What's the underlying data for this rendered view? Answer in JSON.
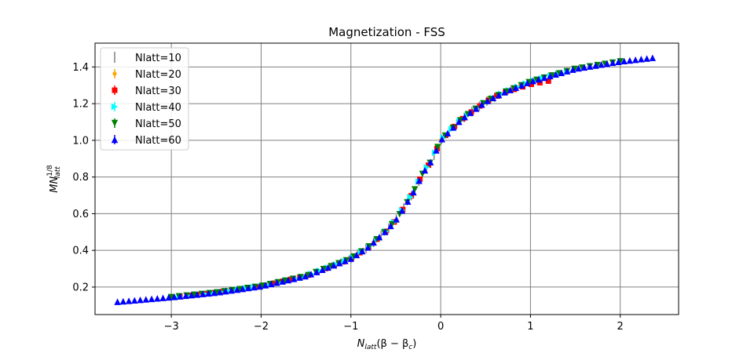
{
  "chart_data": {
    "type": "scatter",
    "title": "Magnetization - FSS",
    "xlabel": "N_latt(β − β_c)",
    "ylabel": "M N_latt^(1/8)",
    "xlim": [
      -3.85,
      2.65
    ],
    "ylim": [
      0.05,
      1.53
    ],
    "xticks": [
      -3,
      -2,
      -1,
      0,
      1,
      2
    ],
    "yticks": [
      0.2,
      0.4,
      0.6,
      0.8,
      1.0,
      1.2,
      1.4
    ],
    "xtick_labels": [
      "−3",
      "−2",
      "−1",
      "0",
      "1",
      "2"
    ],
    "ytick_labels": [
      "0.2",
      "0.4",
      "0.6",
      "0.8",
      "1.0",
      "1.2",
      "1.4"
    ],
    "grid": true,
    "legend_position": "top-left",
    "series": [
      {
        "name": "Nlatt=10",
        "color": "#808080",
        "marker": "errorbar",
        "x_range": [
          -1.0,
          0.6
        ],
        "n_points": 20
      },
      {
        "name": "Nlatt=20",
        "color": "#ffa500",
        "marker": "dot",
        "x_range": [
          -2.0,
          1.0
        ],
        "n_points": 25
      },
      {
        "name": "Nlatt=30",
        "color": "#ff0000",
        "marker": "square",
        "x_range": [
          -3.0,
          1.2
        ],
        "n_points": 45
      },
      {
        "name": "Nlatt=40",
        "color": "#00ffff",
        "marker": "triangle-right",
        "x_range": [
          -3.0,
          1.5
        ],
        "n_points": 50
      },
      {
        "name": "Nlatt=50",
        "color": "#008000",
        "marker": "triangle-down",
        "x_range": [
          -3.0,
          2.0
        ],
        "n_points": 60
      },
      {
        "name": "Nlatt=60",
        "color": "#0000ff",
        "marker": "triangle-up",
        "x_range": [
          -3.6,
          2.36
        ],
        "n_points": 95
      }
    ],
    "curve_samples": {
      "x": [
        -3.6,
        -3.0,
        -2.5,
        -2.0,
        -1.5,
        -1.0,
        -0.8,
        -0.6,
        -0.5,
        -0.4,
        -0.3,
        -0.2,
        -0.1,
        0.0,
        0.1,
        0.2,
        0.3,
        0.5,
        0.7,
        1.0,
        1.5,
        2.0,
        2.36
      ],
      "y": [
        0.12,
        0.145,
        0.17,
        0.205,
        0.26,
        0.355,
        0.42,
        0.51,
        0.565,
        0.64,
        0.72,
        0.82,
        0.89,
        1.0,
        1.05,
        1.1,
        1.14,
        1.21,
        1.26,
        1.32,
        1.39,
        1.43,
        1.45
      ]
    }
  }
}
